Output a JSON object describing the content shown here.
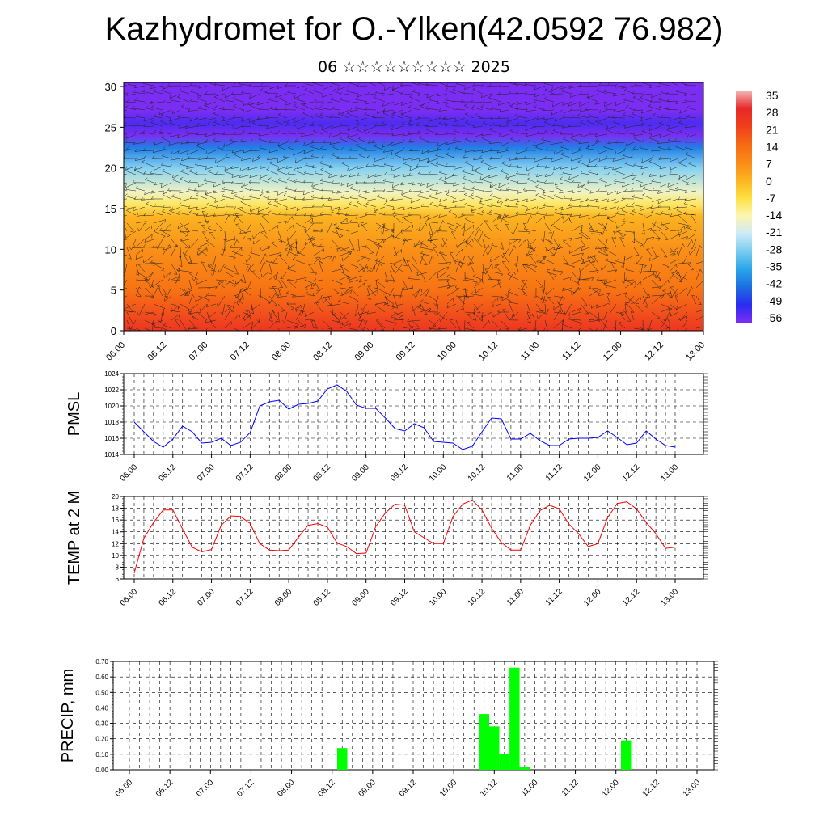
{
  "header": {
    "title": "Kazhydromet for O.-Ylken(42.0592 76.982)",
    "subtitle": "06 ☆☆☆☆☆☆☆☆☆ 2025"
  },
  "chart_data": [
    {
      "type": "heatmap",
      "title": "Kazhydromet for O.-Ylken(42.0592 76.982)",
      "x_tick_labels": [
        "06.00",
        "06.12",
        "07.00",
        "07.12",
        "08.00",
        "08.12",
        "09.00",
        "09.12",
        "10.00",
        "10.12",
        "11.00",
        "11.12",
        "12.00",
        "12.12",
        "13.00"
      ],
      "y_ticks": [
        0,
        5,
        10,
        15,
        20,
        25,
        30
      ],
      "ylim": [
        0,
        30.5
      ],
      "colorbar_labels": [
        "35",
        "28",
        "21",
        "14",
        "7",
        "0",
        "-7",
        "-14",
        "-21",
        "-28",
        "-35",
        "-42",
        "-49",
        "-56"
      ],
      "colorbar_colors": [
        "#f5b8b8",
        "#e8282a",
        "#f03e1c",
        "#f66a12",
        "#f98a16",
        "#fbb321",
        "#fde040",
        "#fdf6b0",
        "#cfeaf7",
        "#79cdf0",
        "#2aa6ea",
        "#1c6fe3",
        "#2a2cf0",
        "#7b2df3"
      ],
      "temperature_profile": [
        {
          "level": 0,
          "value": 24
        },
        {
          "level": 5,
          "value": 12
        },
        {
          "level": 10,
          "value": 6
        },
        {
          "level": 14,
          "value": 0
        },
        {
          "level": 15.5,
          "value": -9
        },
        {
          "level": 17,
          "value": -16
        },
        {
          "level": 20,
          "value": -27
        },
        {
          "level": 22.5,
          "value": -40
        },
        {
          "level": 24,
          "value": -56
        },
        {
          "level": 25.5,
          "value": -52
        },
        {
          "level": 27,
          "value": -56
        },
        {
          "level": 30.5,
          "value": -60
        }
      ],
      "grid": true
    },
    {
      "type": "line",
      "ylabel": "PMSL",
      "x_tick_labels": [
        "06.00",
        "06.12",
        "07.00",
        "07.12",
        "08.00",
        "08.12",
        "09.00",
        "09.12",
        "10.00",
        "10.12",
        "11.00",
        "11.12",
        "12.00",
        "12.12",
        "13.00"
      ],
      "y_tick_labels": [
        "1014",
        "1016",
        "1018",
        "1020",
        "1022",
        "1024"
      ],
      "ylim": [
        1014,
        1024
      ],
      "grid": true,
      "line_color": "#0000ff",
      "values": [
        1018,
        1016.8,
        1015.6,
        1014.9,
        1015.9,
        1017.5,
        1016.8,
        1015.4,
        1015.5,
        1016.0,
        1015.1,
        1015.5,
        1016.7,
        1020.0,
        1020.5,
        1020.7,
        1019.6,
        1020.2,
        1020.3,
        1020.6,
        1022.1,
        1022.6,
        1021.8,
        1020.1,
        1019.7,
        1019.7,
        1018.5,
        1017.2,
        1016.9,
        1017.8,
        1017.3,
        1015.6,
        1015.5,
        1015.4,
        1014.6,
        1015.0,
        1016.8,
        1018.5,
        1018.4,
        1015.9,
        1015.9,
        1016.6,
        1015.7,
        1015.1,
        1015.1,
        1015.9,
        1016.0,
        1016.0,
        1016.1,
        1016.9,
        1016.1,
        1015.2,
        1015.4,
        1016.9,
        1015.9,
        1015.1,
        1014.9
      ]
    },
    {
      "type": "line",
      "ylabel": "TEMP at 2 M",
      "x_tick_labels": [
        "06.00",
        "06.12",
        "07.00",
        "07.12",
        "08.00",
        "08.12",
        "09.00",
        "09.12",
        "10.00",
        "10.12",
        "11.00",
        "11.12",
        "12.00",
        "12.12",
        "13.00"
      ],
      "y_tick_labels": [
        "6",
        "8",
        "10",
        "12",
        "14",
        "16",
        "18",
        "20"
      ],
      "ylim": [
        6,
        20
      ],
      "grid": true,
      "line_color": "#ff0000",
      "values": [
        7.0,
        12.9,
        15.6,
        17.7,
        17.7,
        14.5,
        11.4,
        10.6,
        11.0,
        15.1,
        16.7,
        16.6,
        15.4,
        12.0,
        10.9,
        10.8,
        10.9,
        13.1,
        15.1,
        15.4,
        14.8,
        12.1,
        11.5,
        10.3,
        10.4,
        14.9,
        17.2,
        18.7,
        18.5,
        14.0,
        13.0,
        12.0,
        12.0,
        16.6,
        18.7,
        19.4,
        17.7,
        14.6,
        12.2,
        10.9,
        10.9,
        15.1,
        17.6,
        18.5,
        17.9,
        15.3,
        13.7,
        11.5,
        12.0,
        16.4,
        18.8,
        19.1,
        17.9,
        15.6,
        13.7,
        11.2,
        11.4
      ]
    },
    {
      "type": "bar",
      "ylabel": "PRECIP, mm",
      "x_tick_labels": [
        "06.00",
        "06.12",
        "07.00",
        "07.12",
        "08.00",
        "08.12",
        "09.00",
        "09.12",
        "10.00",
        "10.12",
        "11.00",
        "11.12",
        "12.00",
        "12.12",
        "13.00"
      ],
      "y_tick_labels": [
        "0.00",
        "0.10",
        "0.20",
        "0.30",
        "0.40",
        "0.50",
        "0.60",
        "0.70"
      ],
      "ylim": [
        0,
        0.7
      ],
      "grid": true,
      "bar_color": "#00ff00",
      "bars": [
        {
          "x": 21,
          "value": 0.14
        },
        {
          "x": 35,
          "value": 0.36
        },
        {
          "x": 36,
          "value": 0.28
        },
        {
          "x": 37,
          "value": 0.1
        },
        {
          "x": 38,
          "value": 0.66
        },
        {
          "x": 39,
          "value": 0.02
        },
        {
          "x": 49,
          "value": 0.19
        }
      ]
    }
  ]
}
